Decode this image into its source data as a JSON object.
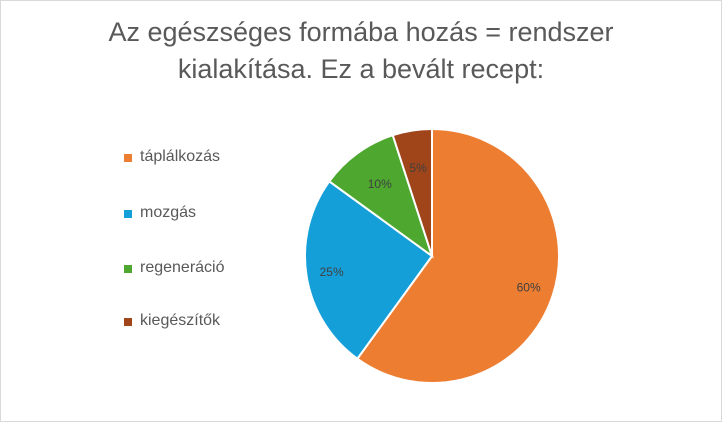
{
  "chart_data": {
    "type": "pie",
    "title": "Az egészséges formába hozás = rendszer kialakítása. Ez a bevált recept:",
    "title_lines": [
      "Az egészséges formába hozás = rendszer",
      "kialakítása. Ez a bevált recept:"
    ],
    "categories": [
      "táplálkozás",
      "mozgás",
      "regeneráció",
      "kiegészítők"
    ],
    "values": [
      60,
      25,
      10,
      5
    ],
    "labels": [
      "60%",
      "25%",
      "10%",
      "5%"
    ],
    "colors": [
      "#ED7D31",
      "#159FD9",
      "#4EA72E",
      "#A0441A"
    ],
    "legend_position": "left",
    "grid": false
  }
}
